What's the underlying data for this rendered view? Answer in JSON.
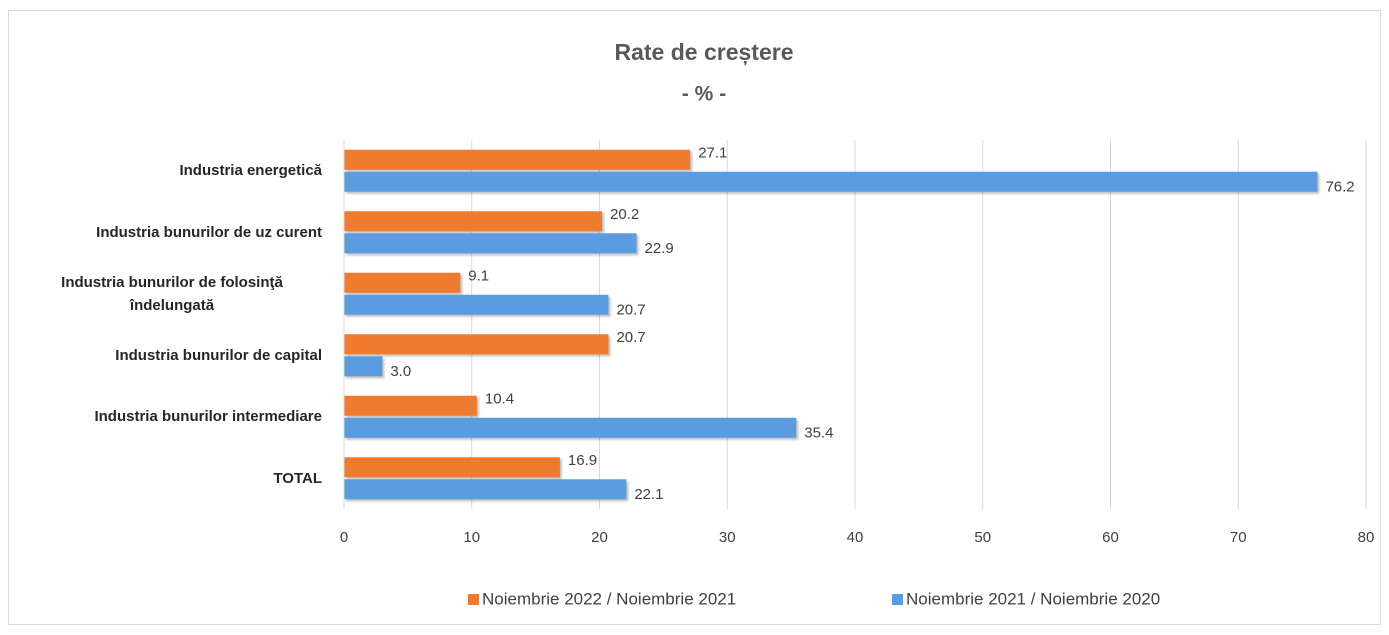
{
  "chart_data": {
    "type": "bar",
    "orientation": "horizontal",
    "title": "Rate de creștere",
    "subtitle": "- % -",
    "categories": [
      "Industria energetică",
      "Industria bunurilor de uz curent",
      "Industria bunurilor de folosinţă îndelungată",
      "Industria bunurilor de capital",
      "Industria bunurilor intermediare",
      "TOTAL"
    ],
    "series": [
      {
        "name": "Noiembrie 2022 / Noiembrie 2021",
        "color": "#ef7b2e",
        "values": [
          27.1,
          20.2,
          9.1,
          20.7,
          10.4,
          16.9
        ],
        "value_labels": [
          "27.1",
          "20.2",
          "9.1",
          "20.7",
          "10.4",
          "16.9"
        ]
      },
      {
        "name": "Noiembrie 2021 / Noiembrie 2020",
        "color": "#5b9be0",
        "values": [
          76.2,
          22.9,
          20.7,
          3.0,
          35.4,
          22.1
        ],
        "value_labels": [
          "76.2",
          "22.9",
          "20.7",
          "3.0",
          "35.4",
          "22.1"
        ]
      }
    ],
    "xlim": [
      0,
      80
    ],
    "xticks": [
      0,
      10,
      20,
      30,
      40,
      50,
      60,
      70,
      80
    ],
    "grid": true,
    "legend": "bottom"
  }
}
